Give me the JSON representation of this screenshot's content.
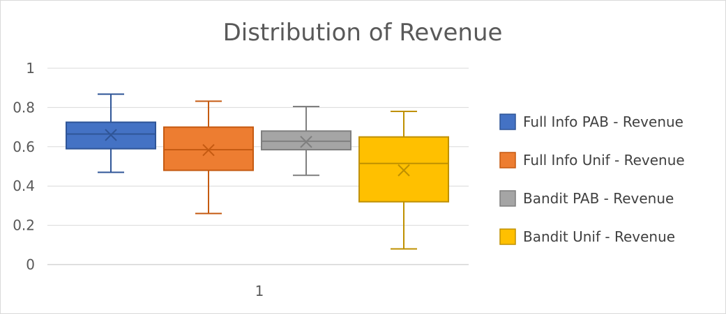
{
  "chart_data": {
    "type": "boxplot",
    "title": "Distribution of Revenue",
    "xlabel": "",
    "ylabel": "",
    "categories": [
      "1"
    ],
    "ylim": [
      0,
      1
    ],
    "yticks": [
      "0",
      "0.2",
      "0.4",
      "0.6",
      "0.8",
      "1"
    ],
    "grid": true,
    "legend_position": "right",
    "series": [
      {
        "name": "Full Info PAB - Revenue",
        "color": "#4472c4",
        "edge": "#2f5597",
        "min": 0.47,
        "q1": 0.59,
        "median": 0.665,
        "q3": 0.725,
        "max": 0.868,
        "mean": 0.66
      },
      {
        "name": "Full Info Unif - Revenue",
        "color": "#ed7d31",
        "edge": "#c55a11",
        "min": 0.26,
        "q1": 0.48,
        "median": 0.585,
        "q3": 0.7,
        "max": 0.832,
        "mean": 0.583
      },
      {
        "name": "Bandit PAB - Revenue",
        "color": "#a5a5a5",
        "edge": "#7f7f7f",
        "min": 0.455,
        "q1": 0.585,
        "median": 0.628,
        "q3": 0.68,
        "max": 0.805,
        "mean": 0.625
      },
      {
        "name": "Bandit Unif - Revenue",
        "color": "#ffc000",
        "edge": "#bf9000",
        "min": 0.08,
        "q1": 0.32,
        "median": 0.515,
        "q3": 0.65,
        "max": 0.78,
        "mean": 0.48
      }
    ]
  }
}
